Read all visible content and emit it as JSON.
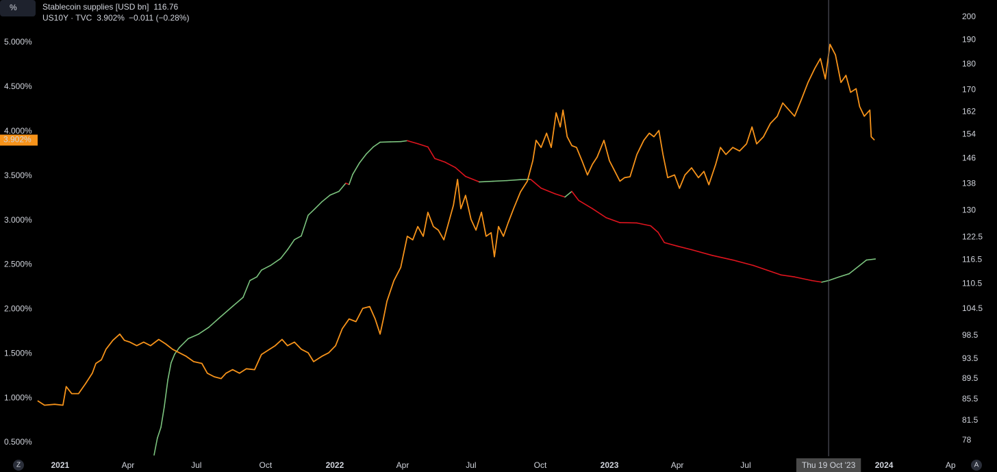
{
  "chart_data": {
    "type": "line",
    "ui": {
      "scale_button": "%",
      "zoom_button": "Z",
      "auto_button": "A"
    },
    "xlim": [
      2020.781,
      2024.259
    ],
    "xticks": [
      2021,
      {
        "value": 2021.247,
        "label": "Apr"
      },
      {
        "value": 2021.496,
        "label": "Jul"
      },
      {
        "value": 2021.748,
        "label": "Oct"
      },
      2022,
      {
        "value": 2022.247,
        "label": "Apr"
      },
      {
        "value": 2022.496,
        "label": "Jul"
      },
      {
        "value": 2022.748,
        "label": "Oct"
      },
      2023,
      {
        "value": 2023.247,
        "label": "Apr"
      },
      {
        "value": 2023.496,
        "label": "Jul"
      },
      {
        "value": 2023.748,
        "label": "Oct"
      },
      2024,
      {
        "value": 2024.247,
        "label": "Apr"
      }
    ],
    "ylim": [
      0.346,
      5.478
    ],
    "yticks": [
      {
        "value": 0.5,
        "label": "0.500%"
      },
      {
        "value": 1,
        "label": "1.000%"
      },
      {
        "value": 1.5,
        "label": "1.500%"
      },
      {
        "value": 2,
        "label": "2.000%"
      },
      {
        "value": 2.5,
        "label": "2.500%"
      },
      {
        "value": 3,
        "label": "3.000%"
      },
      {
        "value": 3.5,
        "label": "3.500%"
      },
      {
        "value": 4,
        "label": "4.000%"
      },
      {
        "value": 4.5,
        "label": "4.500%"
      },
      {
        "value": 5,
        "label": "5.000%"
      }
    ],
    "y2lim": [
      75.3,
      207.7
    ],
    "y2log": true,
    "y2ticks": [
      78,
      81.5,
      85.5,
      89.5,
      93.5,
      98.5,
      104.5,
      110.5,
      116.5,
      122.5,
      130,
      138,
      146,
      154,
      162,
      170,
      180,
      190,
      200
    ],
    "crosshair": {
      "x": 2023.798,
      "label": "Thu 19 Oct '23"
    },
    "series": [
      {
        "name": "Stablecoin supplies [USD bn]",
        "axis": "y2",
        "up_color": "#7cc47f",
        "down_color": "#e0141e",
        "legend_value": "116.76",
        "x": [
          2021.342,
          2021.354,
          2021.367,
          2021.379,
          2021.392,
          2021.404,
          2021.417,
          2021.434,
          2021.466,
          2021.504,
          2021.541,
          2021.579,
          2021.628,
          2021.666,
          2021.691,
          2021.716,
          2021.733,
          2021.766,
          2021.803,
          2021.828,
          2021.853,
          2021.878,
          2021.903,
          2021.928,
          2021.953,
          2021.983,
          2022.015,
          2022.04,
          2022.052,
          2022.065,
          2022.09,
          2022.115,
          2022.14,
          2022.165,
          2022.202,
          2022.24,
          2022.264,
          2022.302,
          2022.339,
          2022.364,
          2022.402,
          2022.439,
          2022.476,
          2022.526,
          2022.576,
          2022.626,
          2022.676,
          2022.713,
          2022.751,
          2022.801,
          2022.838,
          2022.863,
          2022.888,
          2022.938,
          2022.988,
          2023.038,
          2023.1,
          2023.15,
          2023.177,
          2023.2,
          2023.25,
          2023.299,
          2023.374,
          2023.449,
          2023.524,
          2023.574,
          2023.624,
          2023.674,
          2023.736,
          2023.773,
          2023.798,
          2023.836,
          2023.873,
          2023.911,
          2023.936,
          2023.968
        ],
        "values": [
          75.5,
          78.4,
          80.3,
          84.0,
          89.2,
          92.7,
          94.5,
          95.9,
          97.8,
          98.8,
          100.3,
          102.4,
          105.1,
          107.2,
          111.3,
          112.2,
          113.9,
          115.1,
          116.9,
          119.2,
          121.9,
          122.9,
          128.7,
          130.6,
          132.6,
          134.6,
          135.7,
          138.2,
          137.8,
          140.9,
          144.6,
          147.5,
          149.8,
          151.4,
          151.5,
          151.6,
          151.9,
          150.9,
          149.8,
          146.0,
          144.8,
          143.1,
          140.3,
          138.6,
          138.8,
          139.0,
          139.3,
          139.4,
          136.7,
          135.0,
          134.0,
          135.7,
          133.0,
          130.6,
          128.0,
          126.6,
          126.5,
          125.7,
          123.9,
          121.1,
          120.1,
          119.2,
          117.7,
          116.5,
          115.1,
          113.9,
          112.7,
          112.2,
          111.3,
          110.9,
          111.3,
          112.2,
          113.0,
          115.1,
          116.5,
          116.76
        ]
      },
      {
        "name": "US10Y · TVC",
        "axis": "y",
        "color": "#f7931a",
        "legend_value": "3.902%",
        "legend_change": "−0.011 (−0.28%)",
        "x": [
          2020.918,
          2020.943,
          2020.98,
          2021.01,
          2021.022,
          2021.042,
          2021.067,
          2021.092,
          2021.117,
          2021.13,
          2021.15,
          2021.167,
          2021.192,
          2021.217,
          2021.234,
          2021.254,
          2021.279,
          2021.304,
          2021.329,
          2021.359,
          2021.384,
          2021.409,
          2021.434,
          2021.459,
          2021.486,
          2021.516,
          2021.536,
          2021.561,
          2021.586,
          2021.604,
          2021.628,
          2021.653,
          2021.678,
          2021.708,
          2021.733,
          2021.758,
          2021.783,
          2021.808,
          2021.828,
          2021.853,
          2021.878,
          2021.903,
          2021.923,
          2021.953,
          2021.978,
          2022.003,
          2022.027,
          2022.052,
          2022.077,
          2022.102,
          2022.127,
          2022.147,
          2022.165,
          2022.177,
          2022.19,
          2022.215,
          2022.24,
          2022.264,
          2022.284,
          2022.302,
          2022.322,
          2022.339,
          2022.359,
          2022.377,
          2022.397,
          2022.414,
          2022.432,
          2022.447,
          2022.459,
          2022.476,
          2022.496,
          2022.514,
          2022.534,
          2022.551,
          2022.569,
          2022.581,
          2022.596,
          2022.614,
          2022.631,
          2022.651,
          2022.676,
          2022.701,
          2022.721,
          2022.733,
          2022.751,
          2022.771,
          2022.788,
          2022.806,
          2022.821,
          2022.831,
          2022.846,
          2022.863,
          2022.88,
          2022.9,
          2022.92,
          2022.938,
          2022.955,
          2022.98,
          2023.0,
          2023.02,
          2023.038,
          2023.055,
          2023.075,
          2023.1,
          2023.125,
          2023.145,
          2023.162,
          2023.18,
          2023.195,
          2023.212,
          2023.237,
          2023.255,
          2023.275,
          2023.299,
          2023.324,
          2023.344,
          2023.362,
          2023.387,
          2023.404,
          2023.424,
          2023.449,
          2023.474,
          2023.499,
          2023.519,
          2023.536,
          2023.561,
          2023.586,
          2023.611,
          2023.631,
          2023.654,
          2023.674,
          2023.699,
          2023.723,
          2023.748,
          2023.768,
          2023.786,
          2023.803,
          2023.823,
          2023.843,
          2023.861,
          2023.878,
          2023.898,
          2023.911,
          2023.928,
          2023.948,
          2023.953,
          2023.965
        ],
        "values": [
          0.97,
          0.92,
          0.93,
          0.92,
          1.13,
          1.05,
          1.05,
          1.16,
          1.28,
          1.39,
          1.43,
          1.55,
          1.65,
          1.72,
          1.65,
          1.63,
          1.59,
          1.63,
          1.59,
          1.66,
          1.61,
          1.55,
          1.51,
          1.47,
          1.41,
          1.39,
          1.28,
          1.24,
          1.22,
          1.28,
          1.32,
          1.28,
          1.33,
          1.32,
          1.49,
          1.54,
          1.59,
          1.66,
          1.59,
          1.63,
          1.55,
          1.51,
          1.41,
          1.47,
          1.51,
          1.59,
          1.78,
          1.89,
          1.86,
          2.01,
          2.03,
          1.89,
          1.72,
          1.89,
          2.09,
          2.32,
          2.47,
          2.82,
          2.78,
          2.93,
          2.82,
          3.09,
          2.93,
          2.89,
          2.78,
          2.97,
          3.17,
          3.46,
          3.13,
          3.28,
          3.01,
          2.89,
          3.09,
          2.82,
          2.86,
          2.59,
          2.93,
          2.82,
          2.97,
          3.13,
          3.32,
          3.44,
          3.67,
          3.9,
          3.82,
          3.98,
          3.82,
          4.21,
          4.05,
          4.24,
          3.94,
          3.84,
          3.82,
          3.67,
          3.51,
          3.63,
          3.71,
          3.9,
          3.67,
          3.55,
          3.44,
          3.48,
          3.49,
          3.74,
          3.9,
          3.98,
          3.94,
          4.01,
          3.74,
          3.48,
          3.51,
          3.36,
          3.51,
          3.59,
          3.48,
          3.55,
          3.4,
          3.63,
          3.82,
          3.74,
          3.82,
          3.78,
          3.86,
          4.05,
          3.86,
          3.94,
          4.09,
          4.17,
          4.32,
          4.24,
          4.17,
          4.36,
          4.55,
          4.71,
          4.82,
          4.59,
          4.98,
          4.86,
          4.55,
          4.63,
          4.44,
          4.48,
          4.28,
          4.17,
          4.24,
          3.94,
          3.902
        ]
      }
    ]
  }
}
